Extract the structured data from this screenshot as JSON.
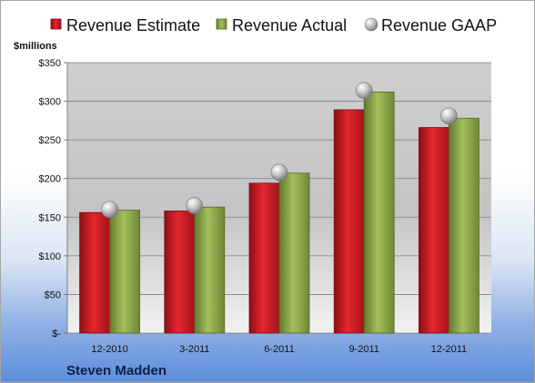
{
  "chart_data": {
    "type": "bar",
    "company": "Steven Madden",
    "yunit": "$millions",
    "categories": [
      "12-2010",
      "3-2011",
      "6-2011",
      "9-2011",
      "12-2011"
    ],
    "series": [
      {
        "name": "Revenue Estimate",
        "kind": "bar",
        "color": "#d0202a",
        "values": [
          156,
          158,
          194,
          289,
          266
        ]
      },
      {
        "name": "Revenue Actual",
        "kind": "bar",
        "color": "#8faa4c",
        "values": [
          159,
          163,
          207,
          312,
          278
        ]
      },
      {
        "name": "Revenue GAAP",
        "kind": "marker",
        "color": "#b8b8b8",
        "values": [
          160,
          165,
          208,
          314,
          281
        ]
      }
    ],
    "yticks": [
      0,
      50,
      100,
      150,
      200,
      250,
      300,
      350
    ],
    "ytick_labels": [
      "$-",
      "$50",
      "$100",
      "$150",
      "$200",
      "$250",
      "$300",
      "$350"
    ],
    "ylim": [
      0,
      350
    ],
    "grid": true,
    "legend_position": "top"
  }
}
